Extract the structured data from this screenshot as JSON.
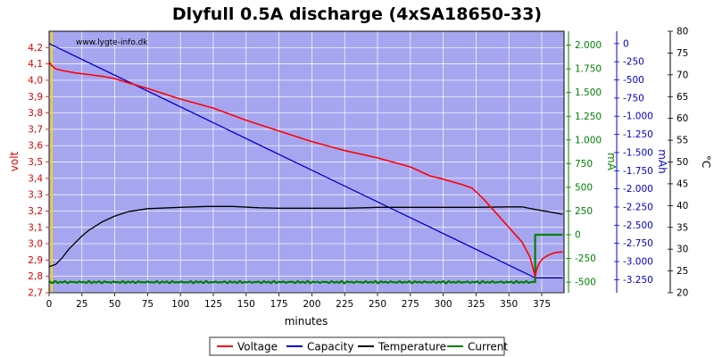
{
  "chart_data": {
    "type": "line",
    "title": "Dlyfull 0.5A discharge (4xSA18650-33)",
    "watermark": "www.lygte-info.dk",
    "xlabel": "minutes",
    "x_ticks": [
      "0",
      "25",
      "50",
      "75",
      "100",
      "125",
      "150",
      "175",
      "200",
      "225",
      "250",
      "275",
      "300",
      "325",
      "350",
      "375"
    ],
    "xlim": [
      0,
      392
    ],
    "grid": true,
    "legend_position": "bottom",
    "axes": {
      "volt": {
        "label": "volt",
        "color": "#e00000",
        "side": "left",
        "range": [
          2.7,
          4.3
        ],
        "ticks": [
          "2,7",
          "2,8",
          "2,9",
          "3,0",
          "3,1",
          "3,2",
          "3,3",
          "3,4",
          "3,5",
          "3,6",
          "3,7",
          "3,8",
          "3,9",
          "4,0",
          "4,1",
          "4,2"
        ]
      },
      "mA": {
        "label": "mA",
        "color": "#008000",
        "range": [
          -612,
          2147
        ],
        "ticks": [
          "-500",
          "-250",
          "0",
          "250",
          "500",
          "750",
          "1.000",
          "1.250",
          "1.500",
          "1.750",
          "2.000"
        ]
      },
      "mAh": {
        "label": "mAh",
        "color": "#0000cc",
        "range": [
          -3430,
          170
        ],
        "ticks": [
          "-3.250",
          "-3.000",
          "-2.750",
          "-2.500",
          "-2.250",
          "-2.000",
          "-1.750",
          "-1.500",
          "-1.250",
          "-1.000",
          "-750",
          "-500",
          "-250",
          "0"
        ]
      },
      "celsius": {
        "label": "°C",
        "color": "#000000",
        "range": [
          20,
          80
        ],
        "ticks": [
          "20",
          "25",
          "30",
          "35",
          "40",
          "45",
          "50",
          "55",
          "60",
          "65",
          "70",
          "75",
          "80"
        ]
      }
    },
    "series": [
      {
        "name": "Voltage",
        "axis": "volt",
        "color": "#ff0000",
        "points": [
          [
            0,
            4.11
          ],
          [
            2,
            4.09
          ],
          [
            5,
            4.07
          ],
          [
            10,
            4.06
          ],
          [
            20,
            4.045
          ],
          [
            30,
            4.035
          ],
          [
            40,
            4.025
          ],
          [
            50,
            4.01
          ],
          [
            60,
            3.985
          ],
          [
            75,
            3.95
          ],
          [
            100,
            3.885
          ],
          [
            125,
            3.83
          ],
          [
            150,
            3.755
          ],
          [
            175,
            3.69
          ],
          [
            200,
            3.625
          ],
          [
            225,
            3.57
          ],
          [
            250,
            3.525
          ],
          [
            275,
            3.47
          ],
          [
            290,
            3.415
          ],
          [
            300,
            3.395
          ],
          [
            315,
            3.36
          ],
          [
            322,
            3.34
          ],
          [
            330,
            3.28
          ],
          [
            340,
            3.19
          ],
          [
            350,
            3.1
          ],
          [
            360,
            3.01
          ],
          [
            366,
            2.92
          ],
          [
            370,
            2.8
          ],
          [
            371,
            2.84
          ],
          [
            373,
            2.88
          ],
          [
            376,
            2.91
          ],
          [
            380,
            2.93
          ],
          [
            385,
            2.945
          ],
          [
            391,
            2.95
          ]
        ]
      },
      {
        "name": "Capacity",
        "axis": "mAh",
        "color": "#0000cc",
        "points": [
          [
            0,
            0
          ],
          [
            370,
            -3225
          ],
          [
            391,
            -3225
          ]
        ]
      },
      {
        "name": "Temperature",
        "axis": "celsius",
        "color": "#000000",
        "points": [
          [
            0,
            26
          ],
          [
            5,
            26.5
          ],
          [
            10,
            28
          ],
          [
            15,
            30
          ],
          [
            20,
            31.5
          ],
          [
            25,
            33
          ],
          [
            30,
            34.3
          ],
          [
            40,
            36.2
          ],
          [
            50,
            37.6
          ],
          [
            60,
            38.6
          ],
          [
            75,
            39.3
          ],
          [
            100,
            39.6
          ],
          [
            120,
            39.8
          ],
          [
            140,
            39.8
          ],
          [
            160,
            39.5
          ],
          [
            175,
            39.4
          ],
          [
            200,
            39.4
          ],
          [
            225,
            39.4
          ],
          [
            240,
            39.5
          ],
          [
            250,
            39.6
          ],
          [
            275,
            39.6
          ],
          [
            300,
            39.6
          ],
          [
            325,
            39.6
          ],
          [
            350,
            39.7
          ],
          [
            360,
            39.7
          ],
          [
            365,
            39.4
          ],
          [
            370,
            39.1
          ],
          [
            380,
            38.6
          ],
          [
            391,
            38
          ]
        ]
      },
      {
        "name": "Current",
        "axis": "mA",
        "color": "#008000",
        "points": [
          [
            0,
            -500
          ],
          [
            370,
            -500
          ],
          [
            370,
            0
          ],
          [
            391,
            0
          ]
        ]
      }
    ],
    "legend": [
      "Voltage",
      "Capacity",
      "Temperature",
      "Current"
    ]
  }
}
